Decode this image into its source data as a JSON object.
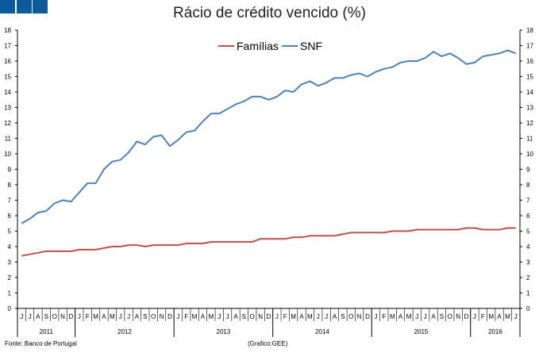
{
  "chart_data": {
    "type": "line",
    "title": "Rácio de crédito vencido (%)",
    "ylim": [
      0,
      18
    ],
    "yticks": [
      0,
      1,
      2,
      3,
      4,
      5,
      6,
      7,
      8,
      9,
      10,
      11,
      12,
      13,
      14,
      15,
      16,
      17,
      18
    ],
    "legend_position": "top-center",
    "months": [
      "J",
      "J",
      "A",
      "S",
      "O",
      "N",
      "D",
      "J",
      "F",
      "M",
      "A",
      "M",
      "J",
      "J",
      "A",
      "S",
      "O",
      "N",
      "D",
      "J",
      "F",
      "M",
      "A",
      "M",
      "J",
      "J",
      "A",
      "S",
      "O",
      "N",
      "D",
      "J",
      "F",
      "M",
      "A",
      "M",
      "J",
      "J",
      "A",
      "S",
      "O",
      "N",
      "D",
      "J",
      "F",
      "M",
      "A",
      "M",
      "J",
      "J",
      "A",
      "S",
      "O",
      "N",
      "D",
      "J",
      "F",
      "M",
      "A",
      "M",
      "J"
    ],
    "years": [
      {
        "label": "2011",
        "count": 7
      },
      {
        "label": "2012",
        "count": 12
      },
      {
        "label": "2013",
        "count": 12
      },
      {
        "label": "2014",
        "count": 12
      },
      {
        "label": "2015",
        "count": 12
      },
      {
        "label": "2016",
        "count": 6
      }
    ],
    "series": [
      {
        "name": "Famílias",
        "color": "#c0504d",
        "values": [
          3.4,
          3.5,
          3.6,
          3.7,
          3.7,
          3.7,
          3.7,
          3.8,
          3.8,
          3.8,
          3.9,
          4.0,
          4.0,
          4.1,
          4.1,
          4.0,
          4.1,
          4.1,
          4.1,
          4.1,
          4.2,
          4.2,
          4.2,
          4.3,
          4.3,
          4.3,
          4.3,
          4.3,
          4.3,
          4.5,
          4.5,
          4.5,
          4.5,
          4.6,
          4.6,
          4.7,
          4.7,
          4.7,
          4.7,
          4.8,
          4.9,
          4.9,
          4.9,
          4.9,
          4.9,
          5.0,
          5.0,
          5.0,
          5.1,
          5.1,
          5.1,
          5.1,
          5.1,
          5.1,
          5.2,
          5.2,
          5.1,
          5.1,
          5.1,
          5.2,
          5.2
        ]
      },
      {
        "name": "SNF",
        "color": "#4f81bd",
        "values": [
          5.5,
          5.8,
          6.2,
          6.3,
          6.8,
          7.0,
          6.9,
          7.5,
          8.1,
          8.1,
          9.0,
          9.5,
          9.6,
          10.1,
          10.8,
          10.6,
          11.1,
          11.2,
          10.5,
          10.9,
          11.4,
          11.5,
          12.1,
          12.6,
          12.6,
          12.9,
          13.2,
          13.4,
          13.7,
          13.7,
          13.5,
          13.7,
          14.1,
          14.0,
          14.5,
          14.7,
          14.4,
          14.6,
          14.9,
          14.9,
          15.1,
          15.2,
          15.0,
          15.3,
          15.5,
          15.6,
          15.9,
          16.0,
          16.0,
          16.2,
          16.6,
          16.3,
          16.5,
          16.2,
          15.8,
          15.9,
          16.3,
          16.4,
          16.5,
          16.7,
          16.5
        ]
      }
    ]
  },
  "footer": {
    "source": "Fonte: Banco de Portugal",
    "credit": "(Grafico:GEE)"
  }
}
